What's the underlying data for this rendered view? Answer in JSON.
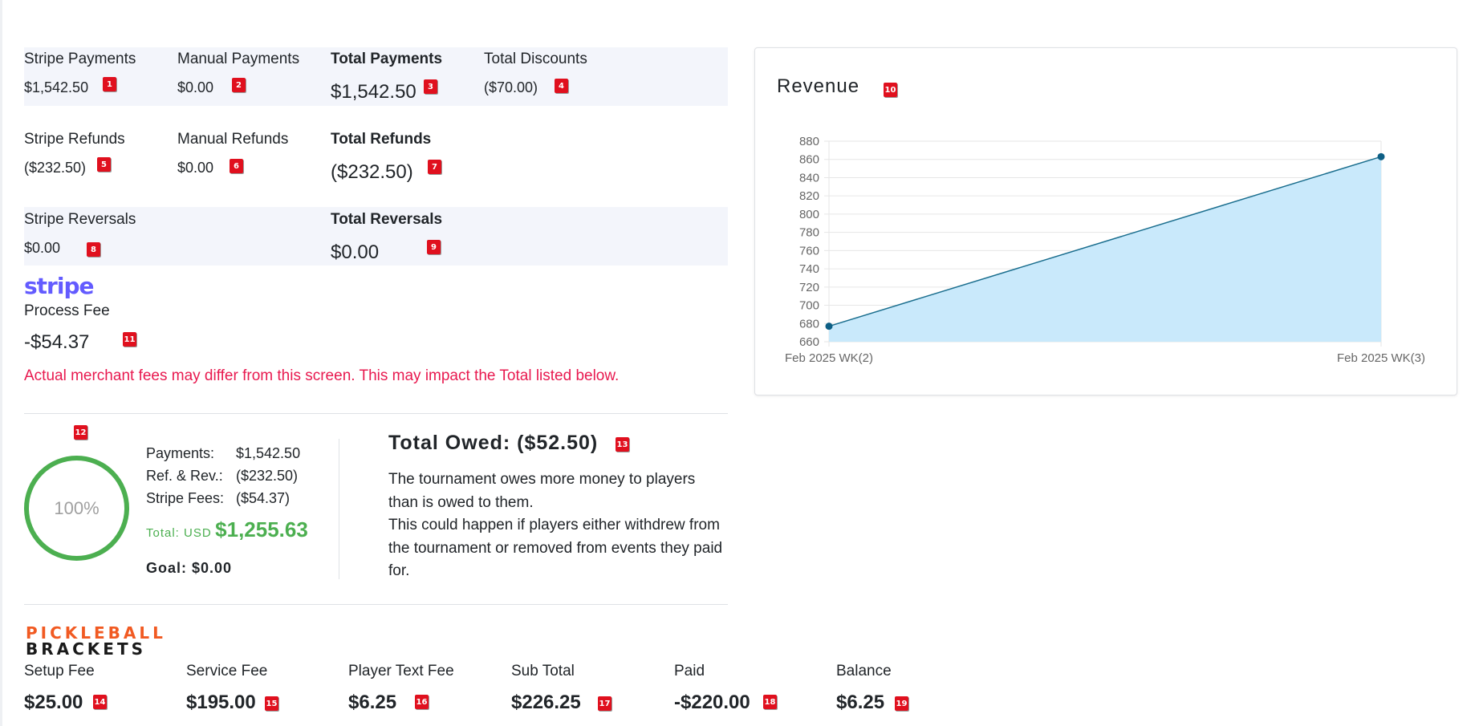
{
  "payments": {
    "stripe_label": "Stripe Payments",
    "stripe_value": "$1,542.50",
    "manual_label": "Manual Payments",
    "manual_value": "$0.00",
    "total_label": "Total Payments",
    "total_value": "$1,542.50",
    "discounts_label": "Total Discounts",
    "discounts_value": "($70.00)"
  },
  "refunds": {
    "stripe_label": "Stripe Refunds",
    "stripe_value": "($232.50)",
    "manual_label": "Manual Refunds",
    "manual_value": "$0.00",
    "total_label": "Total Refunds",
    "total_value": "($232.50)"
  },
  "reversals": {
    "stripe_label": "Stripe Reversals",
    "stripe_value": "$0.00",
    "total_label": "Total Reversals",
    "total_value": "$0.00"
  },
  "stripe_fee": {
    "logo_text": "stripe",
    "label": "Process Fee",
    "value": "-$54.37",
    "note": "Actual merchant fees may differ from this screen. This may impact the Total listed below."
  },
  "summary": {
    "percent": "100%",
    "progress_fraction": 1.0,
    "payments_label": "Payments:",
    "payments_value": "$1,542.50",
    "refrev_label": "Ref. & Rev.:",
    "refrev_value": "($232.50)",
    "fees_label": "Stripe Fees:",
    "fees_value": "($54.37)",
    "total_label": "Total: USD",
    "total_value": "$1,255.63",
    "goal_text": "Goal: $0.00"
  },
  "owed": {
    "title": "Total Owed: ($52.50)",
    "line1": "The tournament owes more money to players than is owed to them.",
    "line2": "This could happen if players either withdrew from the tournament or removed from events they paid for."
  },
  "pb_logo": {
    "top": "PICKLEBALL",
    "bottom": "BRACKETS"
  },
  "fees": {
    "setup_label": "Setup Fee",
    "setup_value": "$25.00",
    "service_label": "Service Fee",
    "service_value": "$195.00",
    "text_label": "Player Text Fee",
    "text_value": "$6.25",
    "subtotal_label": "Sub Total",
    "subtotal_value": "$226.25",
    "paid_label": "Paid",
    "paid_value": "-$220.00",
    "balance_label": "Balance",
    "balance_value": "$6.25"
  },
  "badges": [
    "1",
    "2",
    "3",
    "4",
    "5",
    "6",
    "7",
    "8",
    "9",
    "10",
    "11",
    "12",
    "13",
    "14",
    "15",
    "16",
    "17",
    "18",
    "19"
  ],
  "colors": {
    "accent_green": "#4caf50",
    "badge_red": "#e0101e",
    "warning_pink": "#e8194f",
    "stripe_purple": "#635bff",
    "pb_orange": "#f15a22",
    "chart_line": "#1a6e8e",
    "chart_fill": "#c9e9fb"
  },
  "revenue": {
    "title": "Revenue"
  },
  "chart_data": {
    "type": "area",
    "title": "Revenue",
    "x": [
      "Feb 2025 WK(2)",
      "Feb 2025 WK(3)"
    ],
    "series": [
      {
        "values": [
          677,
          863
        ]
      }
    ],
    "ylim": [
      660,
      880
    ],
    "yticks": [
      660,
      680,
      700,
      720,
      740,
      760,
      780,
      800,
      820,
      840,
      860,
      880
    ],
    "grid": true,
    "legend": "none"
  }
}
